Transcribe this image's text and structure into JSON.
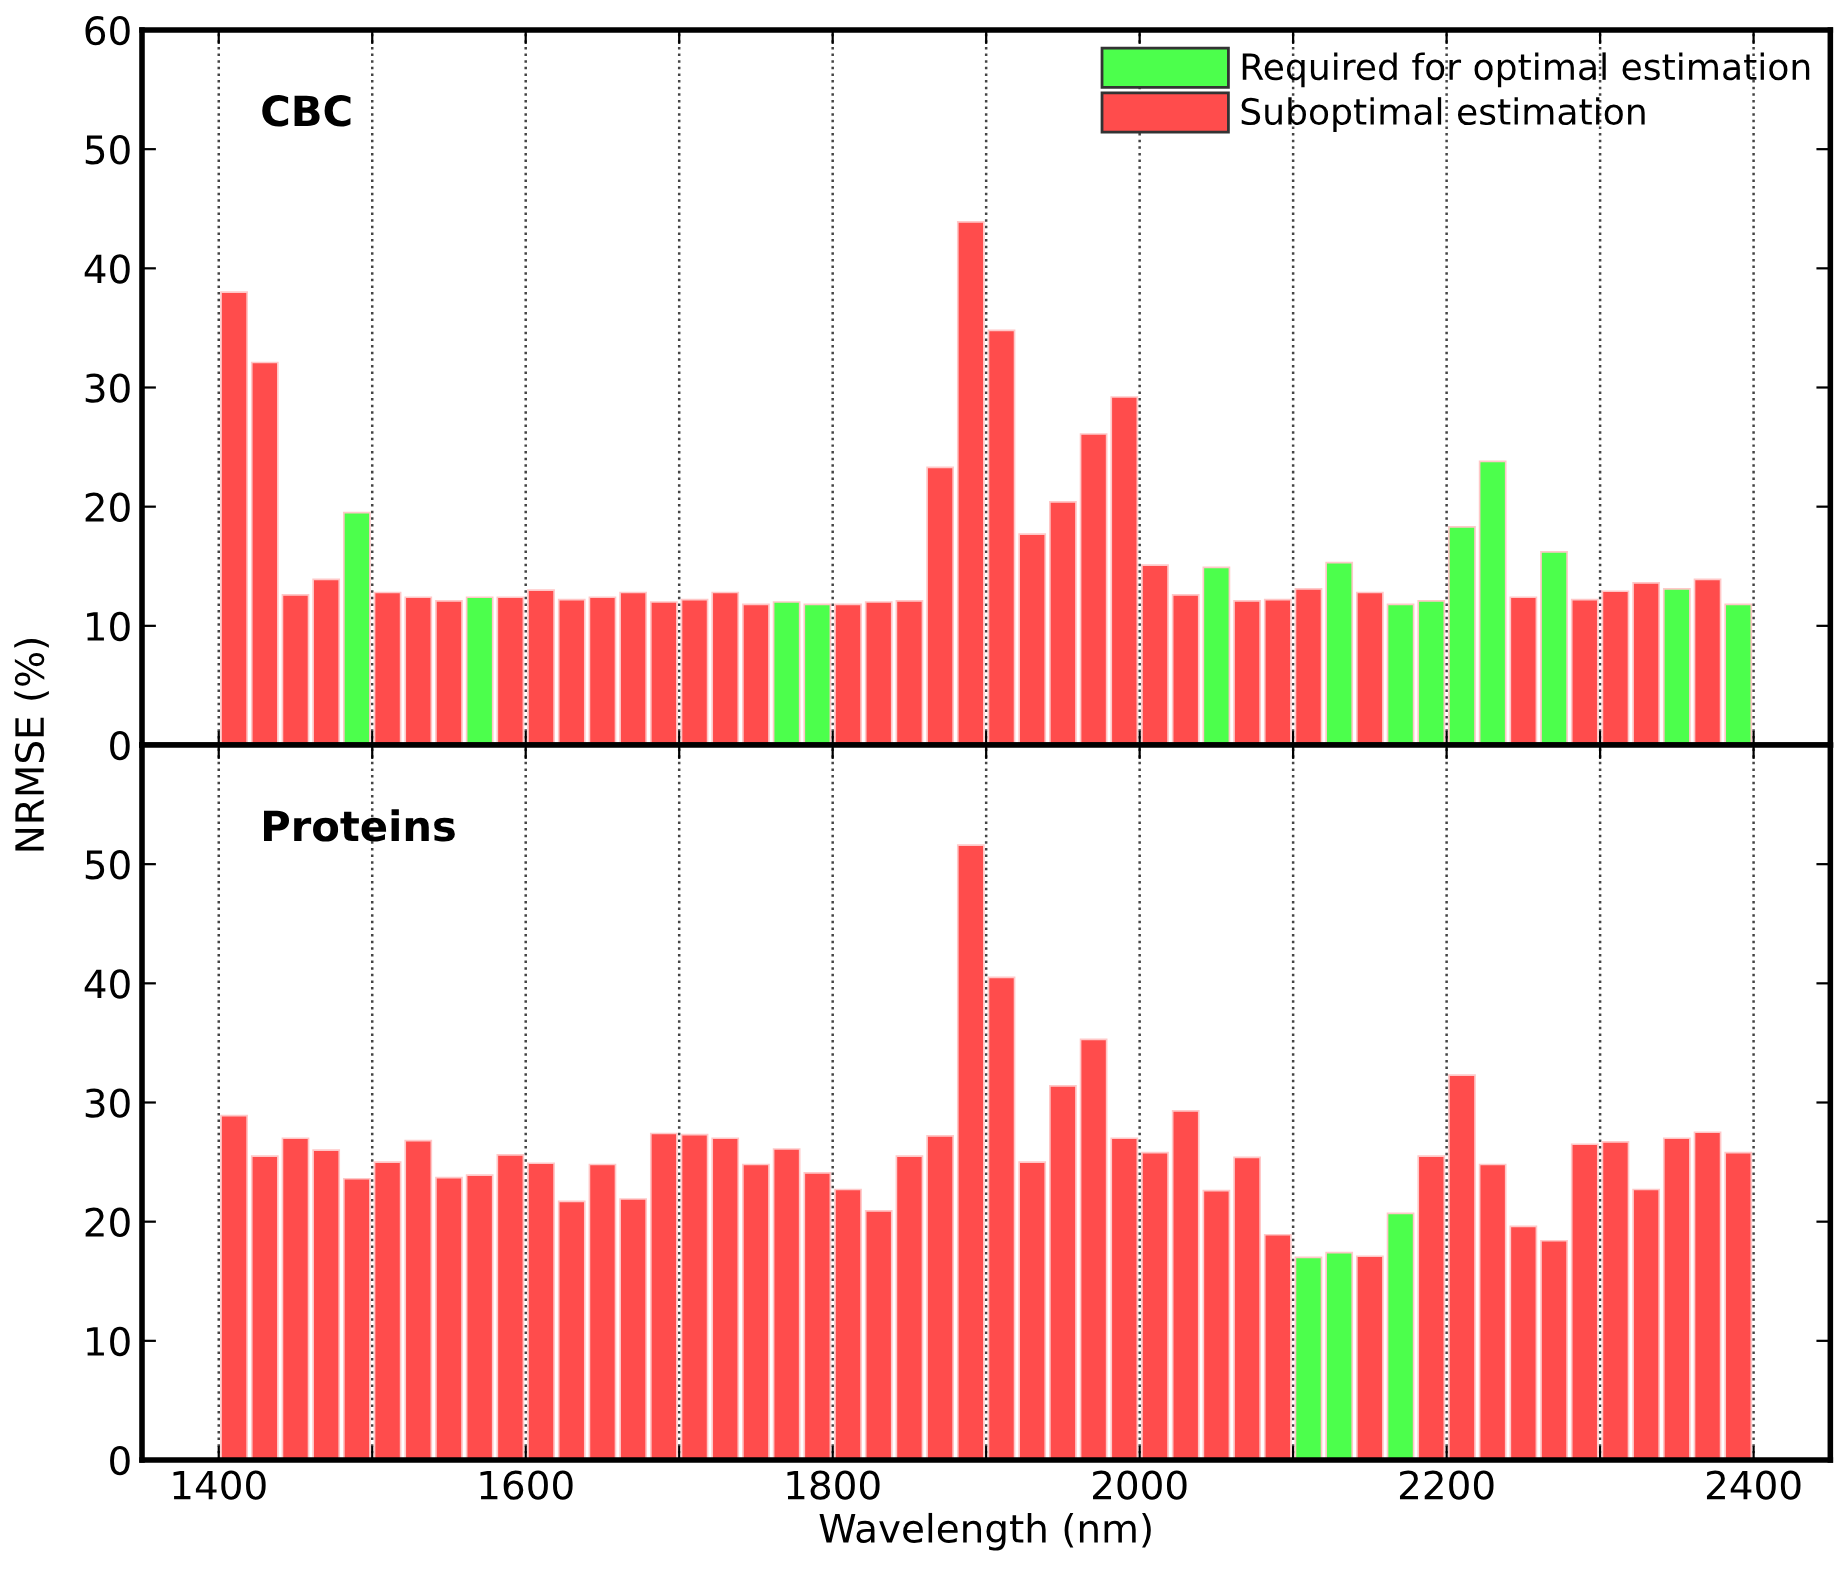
{
  "chart_data": [
    {
      "type": "bar",
      "title": "CBC",
      "ylabel": "NRMSE (%)",
      "x": [
        1410,
        1430,
        1450,
        1470,
        1490,
        1510,
        1530,
        1550,
        1570,
        1590,
        1610,
        1630,
        1650,
        1670,
        1690,
        1710,
        1730,
        1750,
        1770,
        1790,
        1810,
        1830,
        1850,
        1870,
        1890,
        1910,
        1930,
        1950,
        1970,
        1990,
        2010,
        2030,
        2050,
        2070,
        2090,
        2110,
        2130,
        2150,
        2170,
        2190,
        2210,
        2230,
        2250,
        2270,
        2290,
        2310,
        2330,
        2350,
        2370,
        2390
      ],
      "series": [
        {
          "name": "Required for optimal estimation",
          "color": "#4cff4c",
          "values": [
            null,
            null,
            null,
            null,
            19.5,
            null,
            null,
            null,
            12.4,
            null,
            null,
            null,
            null,
            null,
            null,
            null,
            null,
            null,
            12.0,
            11.8,
            null,
            null,
            null,
            null,
            null,
            null,
            null,
            null,
            null,
            null,
            null,
            null,
            14.9,
            null,
            null,
            null,
            15.3,
            null,
            11.8,
            12.1,
            18.3,
            23.8,
            null,
            16.2,
            null,
            null,
            null,
            13.1,
            null,
            11.8
          ]
        },
        {
          "name": "Suboptimal estimation",
          "color": "#ff4c4c",
          "values": [
            38.0,
            32.1,
            12.6,
            13.9,
            null,
            12.8,
            12.4,
            12.1,
            null,
            12.4,
            13.0,
            12.2,
            12.4,
            12.8,
            12.0,
            12.2,
            12.8,
            11.8,
            null,
            null,
            11.8,
            12.0,
            12.1,
            23.3,
            43.9,
            34.8,
            17.7,
            20.4,
            26.1,
            29.2,
            15.1,
            12.6,
            null,
            12.1,
            12.2,
            13.1,
            null,
            12.8,
            null,
            null,
            null,
            null,
            12.4,
            null,
            12.2,
            12.9,
            13.6,
            null,
            13.9,
            null
          ]
        }
      ],
      "xlim": [
        1350,
        2450
      ],
      "xticks": [
        {
          "value": 1400,
          "label": null
        },
        {
          "value": 1500,
          "label": null
        },
        {
          "value": 1600,
          "label": null
        },
        {
          "value": 1700,
          "label": null
        },
        {
          "value": 1800,
          "label": null
        },
        {
          "value": 1900,
          "label": null
        },
        {
          "value": 2000,
          "label": null
        },
        {
          "value": 2100,
          "label": null
        },
        {
          "value": 2200,
          "label": null
        },
        {
          "value": 2300,
          "label": null
        },
        {
          "value": 2400,
          "label": null
        }
      ],
      "ylim": [
        0,
        60
      ],
      "yticks": [
        0,
        10,
        20,
        30,
        40,
        50,
        60
      ],
      "grid": "x",
      "legend": "top right",
      "tick_labels": "y"
    },
    {
      "type": "bar",
      "title": "Proteins",
      "xlabel": "Wavelength (nm)",
      "x": [
        1410,
        1430,
        1450,
        1470,
        1490,
        1510,
        1530,
        1550,
        1570,
        1590,
        1610,
        1630,
        1650,
        1670,
        1690,
        1710,
        1730,
        1750,
        1770,
        1790,
        1810,
        1830,
        1850,
        1870,
        1890,
        1910,
        1930,
        1950,
        1970,
        1990,
        2010,
        2030,
        2050,
        2070,
        2090,
        2110,
        2130,
        2150,
        2170,
        2190,
        2210,
        2230,
        2250,
        2270,
        2290,
        2310,
        2330,
        2350,
        2370,
        2390
      ],
      "series": [
        {
          "color": "#4cff4c",
          "values": [
            null,
            null,
            null,
            null,
            null,
            null,
            null,
            null,
            null,
            null,
            null,
            null,
            null,
            null,
            null,
            null,
            null,
            null,
            null,
            null,
            null,
            null,
            null,
            null,
            null,
            null,
            null,
            null,
            null,
            null,
            null,
            null,
            null,
            null,
            null,
            17.0,
            17.4,
            null,
            20.7,
            null,
            null,
            null,
            null,
            null,
            null,
            null,
            null,
            null,
            null,
            null
          ]
        },
        {
          "color": "#ff4c4c",
          "values": [
            28.9,
            25.5,
            27.0,
            26.0,
            23.6,
            25.0,
            26.8,
            23.7,
            23.9,
            25.6,
            24.9,
            21.7,
            24.8,
            21.9,
            27.4,
            27.3,
            27.0,
            24.8,
            26.1,
            24.1,
            22.7,
            20.9,
            25.5,
            27.2,
            51.6,
            40.5,
            25.0,
            31.4,
            35.3,
            27.0,
            25.8,
            29.3,
            22.6,
            25.4,
            18.9,
            null,
            null,
            17.1,
            null,
            25.5,
            32.3,
            24.8,
            19.6,
            18.4,
            26.5,
            26.7,
            22.7,
            27.0,
            27.5,
            25.8
          ]
        }
      ],
      "xlim": [
        1350,
        2450
      ],
      "xticks": [
        1400,
        {
          "value": 1500,
          "label": null
        },
        1600,
        {
          "value": 1700,
          "label": null
        },
        1800,
        {
          "value": 1900,
          "label": null
        },
        2000,
        {
          "value": 2100,
          "label": null
        },
        2200,
        {
          "value": 2300,
          "label": null
        },
        2400
      ],
      "ylim": [
        0,
        60
      ],
      "yticks": [
        0,
        10,
        20,
        30,
        40,
        50,
        {
          "value": 60,
          "label": null
        }
      ],
      "grid": "x"
    }
  ]
}
